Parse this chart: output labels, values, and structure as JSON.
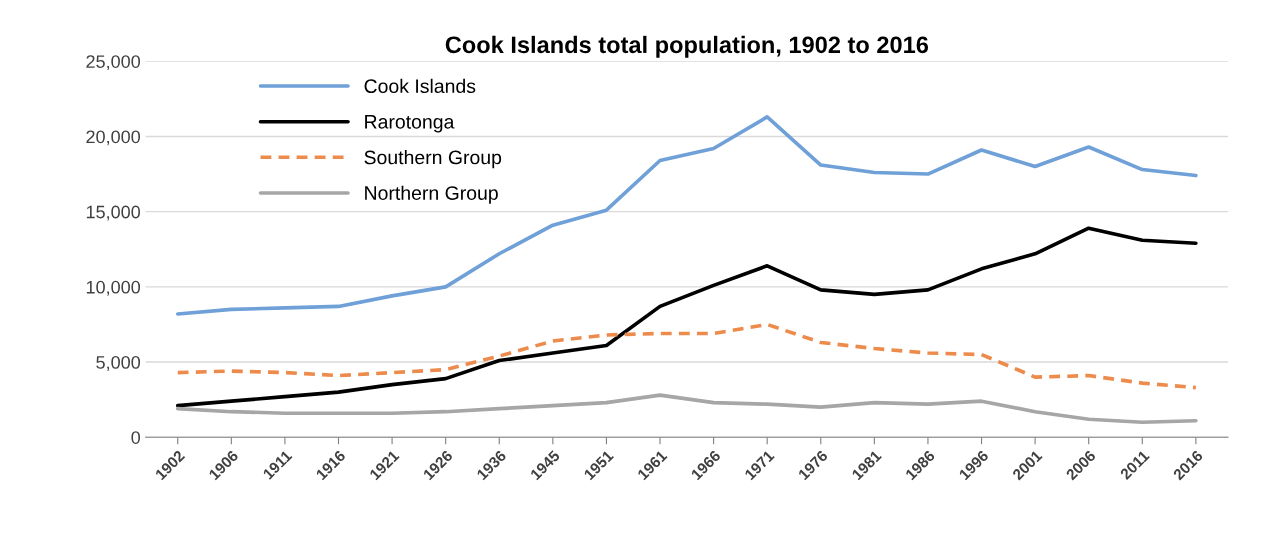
{
  "chart_data": {
    "type": "line",
    "title": "Cook Islands total population, 1902 to 2016",
    "categories": [
      "1902",
      "1906",
      "1911",
      "1916",
      "1921",
      "1926",
      "1936",
      "1945",
      "1951",
      "1961",
      "1966",
      "1971",
      "1976",
      "1981",
      "1986",
      "1996",
      "2001",
      "2006",
      "2011",
      "2016"
    ],
    "series": [
      {
        "name": "Cook Islands",
        "color": "#6fa0d8",
        "line_style": "solid",
        "values": [
          8200,
          8500,
          8600,
          8700,
          9400,
          10000,
          12200,
          14100,
          15100,
          18400,
          19200,
          21300,
          18100,
          17600,
          17500,
          19100,
          18000,
          19300,
          17800,
          17400
        ]
      },
      {
        "name": "Rarotonga",
        "color": "#000000",
        "line_style": "solid",
        "values": [
          2100,
          2400,
          2700,
          3000,
          3500,
          3900,
          5100,
          5600,
          6100,
          8700,
          10100,
          11400,
          9800,
          9500,
          9800,
          11200,
          12200,
          13900,
          13100,
          12900
        ]
      },
      {
        "name": "Southern Group",
        "color": "#ed8b4c",
        "line_style": "dashed",
        "values": [
          4300,
          4400,
          4300,
          4100,
          4300,
          4500,
          5400,
          6400,
          6800,
          6900,
          6900,
          7500,
          6300,
          5900,
          5600,
          5500,
          4000,
          4100,
          3600,
          3300
        ]
      },
      {
        "name": "Northern Group",
        "color": "#a6a6a6",
        "line_style": "solid",
        "values": [
          1900,
          1700,
          1600,
          1600,
          1600,
          1700,
          1900,
          2100,
          2300,
          2800,
          2300,
          2200,
          2000,
          2300,
          2200,
          2400,
          1700,
          1200,
          1000,
          1100
        ]
      }
    ],
    "ylim": [
      0,
      25000
    ],
    "yticks": [
      {
        "value": 0,
        "label": "0"
      },
      {
        "value": 5000,
        "label": "5,000"
      },
      {
        "value": 10000,
        "label": "10,000"
      },
      {
        "value": 15000,
        "label": "15,000"
      },
      {
        "value": 20000,
        "label": "20,000"
      },
      {
        "value": 25000,
        "label": "25,000"
      }
    ],
    "grid": "y",
    "legend": "top left",
    "marker": "none"
  }
}
